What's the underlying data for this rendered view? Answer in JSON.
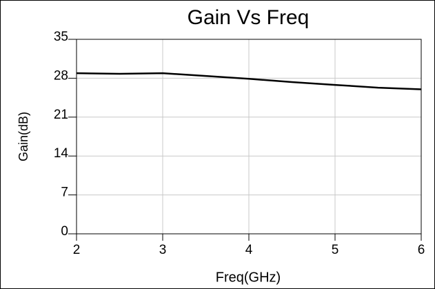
{
  "chart_data": {
    "type": "line",
    "title": "Gain Vs Freq",
    "x_label": "Freq(GHz)",
    "y_label": "Gain(dB)",
    "x": [
      2,
      2.5,
      3,
      3.5,
      4,
      4.5,
      5,
      5.5,
      6
    ],
    "series": [
      {
        "name": "Gain",
        "color": "#000000",
        "values": [
          28.9,
          28.8,
          28.9,
          28.4,
          27.9,
          27.3,
          26.8,
          26.3,
          26.0
        ]
      }
    ],
    "xlim": [
      2,
      6
    ],
    "xticks": [
      2,
      3,
      4,
      5,
      6
    ],
    "ylim": [
      0,
      35
    ],
    "yticks": [
      0,
      7,
      14,
      21,
      28,
      35
    ],
    "grid": true
  }
}
